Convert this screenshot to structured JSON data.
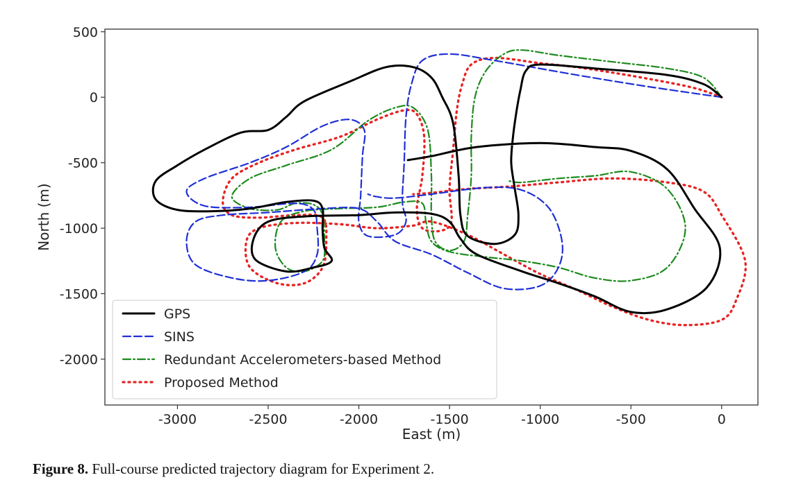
{
  "chart_data": {
    "type": "line",
    "xlabel": "East (m)",
    "ylabel": "North (m)",
    "xlim": [
      -3400,
      200
    ],
    "ylim": [
      -2350,
      520
    ],
    "xticks": [
      -3000,
      -2500,
      -2000,
      -1500,
      -1000,
      -500,
      0
    ],
    "yticks": [
      500,
      0,
      -500,
      -1000,
      -1500,
      -2000
    ],
    "grid": false,
    "legend_position": "lower-left",
    "series": [
      {
        "name": "GPS",
        "color": "#000000",
        "style": "solid",
        "points": [
          [
            0,
            0
          ],
          [
            -100,
            100
          ],
          [
            -300,
            170
          ],
          [
            -700,
            220
          ],
          [
            -1000,
            250
          ],
          [
            -1080,
            200
          ],
          [
            -1110,
            50
          ],
          [
            -1130,
            -100
          ],
          [
            -1150,
            -300
          ],
          [
            -1160,
            -500
          ],
          [
            -1140,
            -700
          ],
          [
            -1120,
            -900
          ],
          [
            -1140,
            -1050
          ],
          [
            -1250,
            -1120
          ],
          [
            -1400,
            -1060
          ],
          [
            -1440,
            -900
          ],
          [
            -1450,
            -600
          ],
          [
            -1480,
            -200
          ],
          [
            -1540,
            0
          ],
          [
            -1600,
            150
          ],
          [
            -1700,
            230
          ],
          [
            -1850,
            230
          ],
          [
            -2050,
            120
          ],
          [
            -2300,
            -30
          ],
          [
            -2400,
            -150
          ],
          [
            -2500,
            -250
          ],
          [
            -2650,
            -270
          ],
          [
            -2850,
            -400
          ],
          [
            -3000,
            -520
          ],
          [
            -3120,
            -640
          ],
          [
            -3120,
            -780
          ],
          [
            -3000,
            -860
          ],
          [
            -2800,
            -870
          ],
          [
            -2600,
            -850
          ],
          [
            -2400,
            -800
          ],
          [
            -2250,
            -790
          ],
          [
            -2200,
            -850
          ],
          [
            -2200,
            -1000
          ],
          [
            -2190,
            -1150
          ],
          [
            -2150,
            -1250
          ],
          [
            -2250,
            -1300
          ],
          [
            -2400,
            -1330
          ],
          [
            -2570,
            -1240
          ],
          [
            -2580,
            -1080
          ],
          [
            -2500,
            -950
          ],
          [
            -2300,
            -910
          ],
          [
            -2000,
            -900
          ],
          [
            -1800,
            -880
          ],
          [
            -1600,
            -890
          ],
          [
            -1500,
            -950
          ],
          [
            -1440,
            -1080
          ],
          [
            -1350,
            -1200
          ],
          [
            -1100,
            -1330
          ],
          [
            -900,
            -1420
          ],
          [
            -700,
            -1520
          ],
          [
            -500,
            -1640
          ],
          [
            -300,
            -1620
          ],
          [
            -80,
            -1450
          ],
          [
            -10,
            -1150
          ],
          [
            -150,
            -850
          ],
          [
            -300,
            -550
          ],
          [
            -500,
            -410
          ],
          [
            -700,
            -380
          ],
          [
            -1000,
            -350
          ],
          [
            -1350,
            -380
          ],
          [
            -1600,
            -450
          ],
          [
            -1730,
            -480
          ]
        ]
      },
      {
        "name": "SINS",
        "color": "#1f2fd6",
        "style": "dashed",
        "points": [
          [
            0,
            0
          ],
          [
            -400,
            80
          ],
          [
            -800,
            170
          ],
          [
            -1250,
            280
          ],
          [
            -1500,
            330
          ],
          [
            -1650,
            280
          ],
          [
            -1710,
            100
          ],
          [
            -1740,
            -150
          ],
          [
            -1750,
            -500
          ],
          [
            -1760,
            -800
          ],
          [
            -1740,
            -950
          ],
          [
            -1800,
            -1050
          ],
          [
            -1950,
            -1060
          ],
          [
            -2000,
            -950
          ],
          [
            -1990,
            -750
          ],
          [
            -1980,
            -450
          ],
          [
            -1970,
            -250
          ],
          [
            -2050,
            -170
          ],
          [
            -2200,
            -220
          ],
          [
            -2400,
            -380
          ],
          [
            -2600,
            -500
          ],
          [
            -2850,
            -620
          ],
          [
            -2950,
            -720
          ],
          [
            -2850,
            -830
          ],
          [
            -2600,
            -840
          ],
          [
            -2350,
            -810
          ],
          [
            -2250,
            -860
          ],
          [
            -2230,
            -1000
          ],
          [
            -2230,
            -1200
          ],
          [
            -2300,
            -1330
          ],
          [
            -2500,
            -1400
          ],
          [
            -2700,
            -1380
          ],
          [
            -2900,
            -1280
          ],
          [
            -2950,
            -1100
          ],
          [
            -2900,
            -950
          ],
          [
            -2750,
            -900
          ],
          [
            -2500,
            -880
          ],
          [
            -2200,
            -850
          ],
          [
            -2000,
            -850
          ],
          [
            -1900,
            -950
          ],
          [
            -1800,
            -1100
          ],
          [
            -1600,
            -1200
          ],
          [
            -1400,
            -1340
          ],
          [
            -1200,
            -1460
          ],
          [
            -1000,
            -1440
          ],
          [
            -900,
            -1300
          ],
          [
            -880,
            -1100
          ],
          [
            -950,
            -850
          ],
          [
            -1100,
            -710
          ],
          [
            -1300,
            -690
          ],
          [
            -1600,
            -740
          ],
          [
            -1800,
            -770
          ],
          [
            -1900,
            -760
          ],
          [
            -1950,
            -740
          ]
        ]
      },
      {
        "name": "Redundant Accelerometers-based Method",
        "color": "#1d8a1d",
        "style": "dashdot",
        "points": [
          [
            0,
            0
          ],
          [
            -100,
            150
          ],
          [
            -300,
            220
          ],
          [
            -600,
            270
          ],
          [
            -900,
            320
          ],
          [
            -1100,
            360
          ],
          [
            -1200,
            330
          ],
          [
            -1300,
            200
          ],
          [
            -1360,
            0
          ],
          [
            -1380,
            -300
          ],
          [
            -1380,
            -600
          ],
          [
            -1400,
            -900
          ],
          [
            -1420,
            -1100
          ],
          [
            -1500,
            -1170
          ],
          [
            -1580,
            -1100
          ],
          [
            -1600,
            -900
          ],
          [
            -1600,
            -600
          ],
          [
            -1620,
            -250
          ],
          [
            -1700,
            -80
          ],
          [
            -1800,
            -80
          ],
          [
            -1950,
            -180
          ],
          [
            -2150,
            -400
          ],
          [
            -2400,
            -520
          ],
          [
            -2600,
            -620
          ],
          [
            -2700,
            -760
          ],
          [
            -2600,
            -850
          ],
          [
            -2450,
            -860
          ],
          [
            -2350,
            -810
          ],
          [
            -2250,
            -820
          ],
          [
            -2200,
            -900
          ],
          [
            -2190,
            -1100
          ],
          [
            -2200,
            -1250
          ],
          [
            -2300,
            -1330
          ],
          [
            -2400,
            -1300
          ],
          [
            -2460,
            -1150
          ],
          [
            -2430,
            -950
          ],
          [
            -2300,
            -870
          ],
          [
            -2100,
            -850
          ],
          [
            -1900,
            -840
          ],
          [
            -1750,
            -800
          ],
          [
            -1650,
            -810
          ],
          [
            -1630,
            -950
          ],
          [
            -1600,
            -1100
          ],
          [
            -1500,
            -1180
          ],
          [
            -1300,
            -1220
          ],
          [
            -1100,
            -1250
          ],
          [
            -900,
            -1300
          ],
          [
            -700,
            -1380
          ],
          [
            -500,
            -1400
          ],
          [
            -300,
            -1300
          ],
          [
            -200,
            -1000
          ],
          [
            -300,
            -700
          ],
          [
            -500,
            -570
          ],
          [
            -700,
            -600
          ],
          [
            -900,
            -620
          ],
          [
            -1100,
            -650
          ],
          [
            -1170,
            -640
          ]
        ]
      },
      {
        "name": "Proposed Method",
        "color": "#e82222",
        "style": "dotted",
        "points": [
          [
            0,
            0
          ],
          [
            -150,
            70
          ],
          [
            -400,
            140
          ],
          [
            -750,
            220
          ],
          [
            -1000,
            260
          ],
          [
            -1250,
            300
          ],
          [
            -1380,
            250
          ],
          [
            -1430,
            100
          ],
          [
            -1460,
            -100
          ],
          [
            -1480,
            -400
          ],
          [
            -1500,
            -700
          ],
          [
            -1490,
            -950
          ],
          [
            -1550,
            -1020
          ],
          [
            -1650,
            -1000
          ],
          [
            -1680,
            -850
          ],
          [
            -1650,
            -600
          ],
          [
            -1640,
            -300
          ],
          [
            -1680,
            -130
          ],
          [
            -1750,
            -100
          ],
          [
            -1900,
            -170
          ],
          [
            -2100,
            -300
          ],
          [
            -2350,
            -400
          ],
          [
            -2550,
            -500
          ],
          [
            -2700,
            -620
          ],
          [
            -2750,
            -800
          ],
          [
            -2700,
            -900
          ],
          [
            -2550,
            -920
          ],
          [
            -2350,
            -900
          ],
          [
            -2200,
            -920
          ],
          [
            -2180,
            -1100
          ],
          [
            -2200,
            -1300
          ],
          [
            -2300,
            -1420
          ],
          [
            -2450,
            -1420
          ],
          [
            -2600,
            -1300
          ],
          [
            -2620,
            -1100
          ],
          [
            -2550,
            -1000
          ],
          [
            -2350,
            -960
          ],
          [
            -2100,
            -970
          ],
          [
            -1900,
            -1000
          ],
          [
            -1700,
            -980
          ],
          [
            -1600,
            -950
          ],
          [
            -1400,
            -1050
          ],
          [
            -1200,
            -1200
          ],
          [
            -1000,
            -1350
          ],
          [
            -800,
            -1470
          ],
          [
            -600,
            -1600
          ],
          [
            -400,
            -1700
          ],
          [
            -200,
            -1740
          ],
          [
            0,
            -1700
          ],
          [
            80,
            -1550
          ],
          [
            130,
            -1250
          ],
          [
            0,
            -900
          ],
          [
            -100,
            -720
          ],
          [
            -300,
            -650
          ],
          [
            -600,
            -620
          ],
          [
            -900,
            -650
          ],
          [
            -1150,
            -680
          ],
          [
            -1400,
            -700
          ],
          [
            -1600,
            -730
          ],
          [
            -1700,
            -740
          ]
        ]
      }
    ]
  },
  "caption": {
    "label": "Figure 8.",
    "text": " Full-course predicted trajectory diagram for Experiment 2."
  }
}
